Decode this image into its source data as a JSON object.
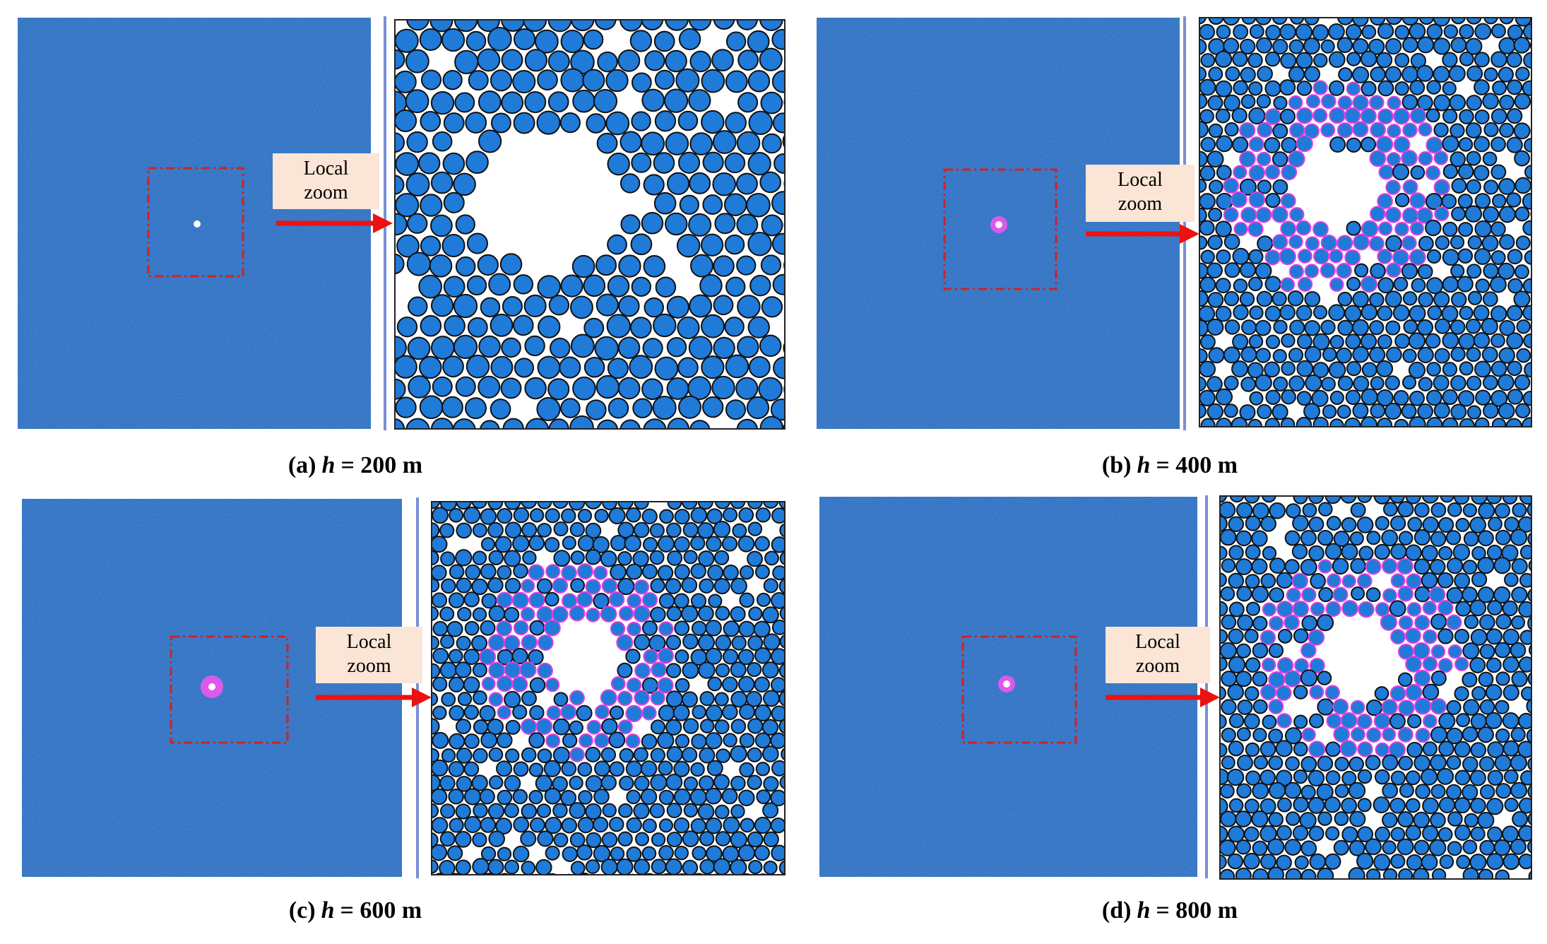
{
  "panels": [
    {
      "label": "(a)",
      "variable": "h",
      "value_text": "= 200 m",
      "callout": [
        "Local",
        "zoom"
      ]
    },
    {
      "label": "(b)",
      "variable": "h",
      "value_text": "= 400 m",
      "callout": [
        "Local",
        "zoom"
      ]
    },
    {
      "label": "(c)",
      "variable": "h",
      "value_text": "= 600 m",
      "callout": [
        "Local",
        "zoom"
      ]
    },
    {
      "label": "(d)",
      "variable": "h",
      "value_text": "= 800 m",
      "callout": [
        "Local",
        "zoom"
      ]
    }
  ]
}
